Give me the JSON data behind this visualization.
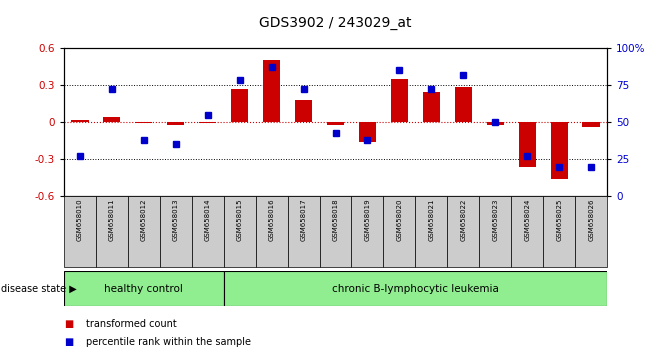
{
  "title": "GDS3902 / 243029_at",
  "samples": [
    "GSM658010",
    "GSM658011",
    "GSM658012",
    "GSM658013",
    "GSM658014",
    "GSM658015",
    "GSM658016",
    "GSM658017",
    "GSM658018",
    "GSM658019",
    "GSM658020",
    "GSM658021",
    "GSM658022",
    "GSM658023",
    "GSM658024",
    "GSM658025",
    "GSM658026"
  ],
  "transformed_count": [
    0.02,
    0.04,
    -0.01,
    -0.02,
    -0.01,
    0.27,
    0.5,
    0.18,
    -0.02,
    -0.16,
    0.35,
    0.24,
    0.28,
    -0.02,
    -0.36,
    -0.46,
    -0.04
  ],
  "percentile_rank": [
    27,
    72,
    38,
    35,
    55,
    78,
    87,
    72,
    43,
    38,
    85,
    72,
    82,
    50,
    27,
    20,
    20
  ],
  "healthy_count": 5,
  "disease_state_label": "disease state",
  "healthy_label": "healthy control",
  "disease_label": "chronic B-lymphocytic leukemia",
  "legend_red": "transformed count",
  "legend_blue": "percentile rank within the sample",
  "ylim_left": [
    -0.6,
    0.6
  ],
  "ylim_right": [
    0,
    100
  ],
  "yticks_left": [
    -0.6,
    -0.3,
    0.0,
    0.3,
    0.6
  ],
  "yticks_right": [
    0,
    25,
    50,
    75,
    100
  ],
  "bar_color": "#cc0000",
  "dot_color": "#0000cc",
  "healthy_bg": "#90ee90",
  "disease_bg": "#90ee90",
  "sample_bg": "#cccccc",
  "dotted_line_color": "#000000",
  "zero_line_color": "#cc0000",
  "bar_width": 0.55
}
